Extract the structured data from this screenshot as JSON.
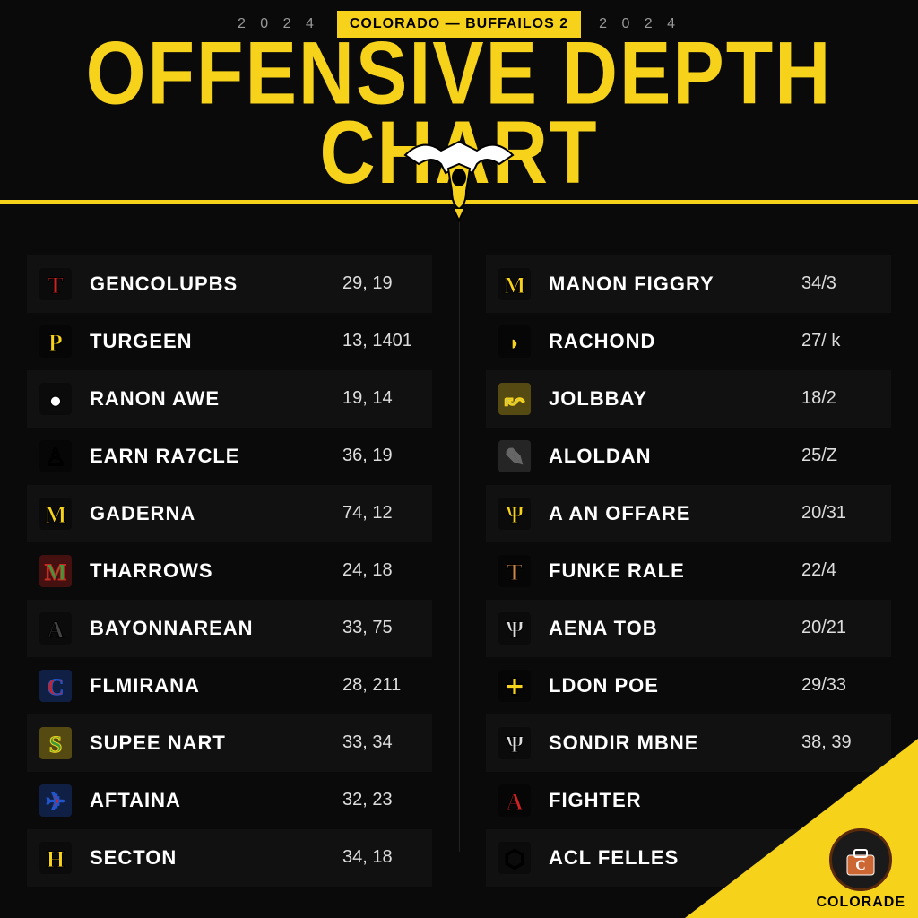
{
  "header": {
    "year_left": "2 0 2 4",
    "year_right": "2 0 2 4",
    "badge": "COLORADO — BUFFAILOS 2",
    "title": "OFFENSIVE  DEPTH CHART"
  },
  "styling": {
    "accent_color": "#f7d21a",
    "background_color": "#0a0a0a",
    "text_color": "#ffffff",
    "row_odd_bg": "rgba(255,255,255,0.03)",
    "title_fontsize": 86,
    "name_fontsize": 22,
    "nums_fontsize": 20
  },
  "left_rows": [
    {
      "name": "GENCOLUPBS",
      "nums": "29, 19",
      "logo_colors": [
        "#cc2222",
        "#000000"
      ],
      "logo_letter": "T"
    },
    {
      "name": "TURGEEN",
      "nums": "13, 1401",
      "logo_colors": [
        "#f7d21a",
        "#000000"
      ],
      "logo_letter": "P"
    },
    {
      "name": "RANON AWE",
      "nums": "19, 14",
      "logo_colors": [
        "#ffffff",
        "#000000"
      ],
      "logo_letter": "●"
    },
    {
      "name": "EARN RA7CLE",
      "nums": "36, 19",
      "logo_colors": [
        "#f7d21a",
        "#000000"
      ],
      "logo_letter": "♙"
    },
    {
      "name": "GADERNA",
      "nums": "74, 12",
      "logo_colors": [
        "#f7d21a",
        "#000000"
      ],
      "logo_letter": "M"
    },
    {
      "name": "THARROWS",
      "nums": "24, 18",
      "logo_colors": [
        "#3a9b3a",
        "#cc2222"
      ],
      "logo_letter": "M"
    },
    {
      "name": "BAYONNAREAN",
      "nums": "33, 75",
      "logo_colors": [
        "#444444",
        "#000000"
      ],
      "logo_letter": "A"
    },
    {
      "name": "FLMIRANA",
      "nums": "28, 211",
      "logo_colors": [
        "#cc2222",
        "#2255cc"
      ],
      "logo_letter": "C"
    },
    {
      "name": "SUPEE NART",
      "nums": "33, 34",
      "logo_colors": [
        "#3a9b3a",
        "#f7d21a"
      ],
      "logo_letter": "S"
    },
    {
      "name": "AFTAINA",
      "nums": "32, 23",
      "logo_colors": [
        "#cc2222",
        "#2255cc"
      ],
      "logo_letter": "✈"
    },
    {
      "name": "SECTON",
      "nums": "34, 18",
      "logo_colors": [
        "#f7d21a",
        "#000000"
      ],
      "logo_letter": "H"
    }
  ],
  "right_rows": [
    {
      "name": "MANON FIGGRY",
      "nums": "34/3",
      "logo_colors": [
        "#f7d21a",
        "#000000"
      ],
      "logo_letter": "M"
    },
    {
      "name": "RACHOND",
      "nums": "27/ k",
      "logo_colors": [
        "#f7d21a",
        "#000000"
      ],
      "logo_letter": "◗"
    },
    {
      "name": "JOLBBAY",
      "nums": "18/2",
      "logo_colors": [
        "#3399ff",
        "#f7d21a"
      ],
      "logo_letter": "↜"
    },
    {
      "name": "ALOLDAN",
      "nums": "25/Z",
      "logo_colors": [
        "#dddddd",
        "#666666"
      ],
      "logo_letter": "✎"
    },
    {
      "name": "A AN OFFARE",
      "nums": "20/31",
      "logo_colors": [
        "#f7d21a",
        "#000000"
      ],
      "logo_letter": "Ѱ"
    },
    {
      "name": "FUNKE RALE",
      "nums": "22/4",
      "logo_colors": [
        "#cc8844",
        "#000000"
      ],
      "logo_letter": "T"
    },
    {
      "name": "AENA TOB",
      "nums": "20/21",
      "logo_colors": [
        "#dddddd",
        "#000000"
      ],
      "logo_letter": "Ѱ"
    },
    {
      "name": "LDON POE",
      "nums": "29/33",
      "logo_colors": [
        "#f7d21a",
        "#000000"
      ],
      "logo_letter": "✚"
    },
    {
      "name": "SONDIR MBNE",
      "nums": "38, 39",
      "logo_colors": [
        "#dddddd",
        "#000000"
      ],
      "logo_letter": "Ѱ"
    },
    {
      "name": "FIGHTER",
      "nums": "",
      "logo_colors": [
        "#cc2222",
        "#000000"
      ],
      "logo_letter": "A"
    },
    {
      "name": "ACL FELLES",
      "nums": "",
      "logo_colors": [
        "#f7d21a",
        "#000000"
      ],
      "logo_letter": "⬡"
    }
  ],
  "corner": {
    "label": "COLORADE"
  }
}
